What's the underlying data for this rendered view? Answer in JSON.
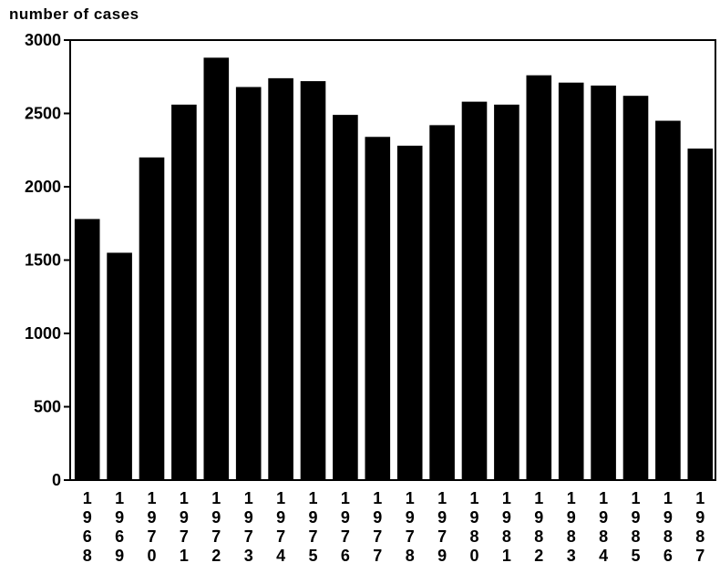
{
  "chart_data": {
    "type": "bar",
    "ylabel": "number of cases",
    "xlabel": "",
    "title": "",
    "ylim": [
      0,
      3000
    ],
    "yticks": [
      0,
      500,
      1000,
      1500,
      2000,
      2500,
      3000
    ],
    "grid": false,
    "legend": "none",
    "bar_color": "#000000",
    "categories": [
      "1968",
      "1969",
      "1970",
      "1971",
      "1972",
      "1973",
      "1974",
      "1975",
      "1976",
      "1977",
      "1978",
      "1979",
      "1980",
      "1981",
      "1982",
      "1983",
      "1984",
      "1985",
      "1986",
      "1987"
    ],
    "values": [
      1780,
      1550,
      2200,
      2560,
      2880,
      2680,
      2740,
      2720,
      2490,
      2340,
      2280,
      2420,
      2580,
      2560,
      2760,
      2710,
      2690,
      2620,
      2450,
      2260
    ]
  }
}
